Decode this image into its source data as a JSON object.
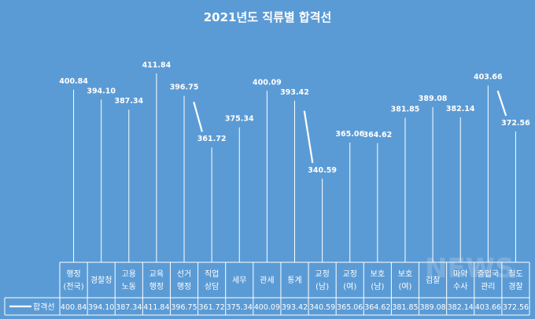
{
  "chart_data": {
    "type": "line",
    "title": "2021년도 직류별 합격선",
    "categories": [
      [
        "행정",
        "(전국)"
      ],
      [
        "경찰청"
      ],
      [
        "고용",
        "노동"
      ],
      [
        "교육",
        "행정"
      ],
      [
        "선거",
        "행정"
      ],
      [
        "직업",
        "상담"
      ],
      [
        "세무"
      ],
      [
        "관세"
      ],
      [
        "통계"
      ],
      [
        "교정",
        "(남)"
      ],
      [
        "교정",
        "(여)"
      ],
      [
        "보호",
        "(남)"
      ],
      [
        "보호",
        "(여)"
      ],
      [
        "검찰"
      ],
      [
        "마약",
        "수사"
      ],
      [
        "출입국",
        "관리"
      ],
      [
        "철도",
        "경찰"
      ]
    ],
    "series": [
      {
        "name": "합격선",
        "values": [
          400.84,
          394.1,
          387.34,
          411.84,
          396.75,
          361.72,
          375.34,
          400.09,
          393.42,
          340.59,
          365.06,
          364.62,
          381.85,
          389.08,
          382.14,
          403.66,
          372.56
        ],
        "labels": [
          "400.84",
          "394.10",
          "387.34",
          "411.84",
          "396.75",
          "361.72",
          "375.34",
          "400.09",
          "393.42",
          "340.59",
          "365.06",
          "364.62",
          "381.85",
          "389.08",
          "382.14",
          "403.66",
          "372.56"
        ]
      }
    ],
    "ylim": [
      0,
      420
    ],
    "legend": "bottom-left",
    "data_table": true,
    "colors": {
      "background": "#5b9bd5",
      "line": "#ffffff"
    }
  },
  "watermark": "NEWS"
}
